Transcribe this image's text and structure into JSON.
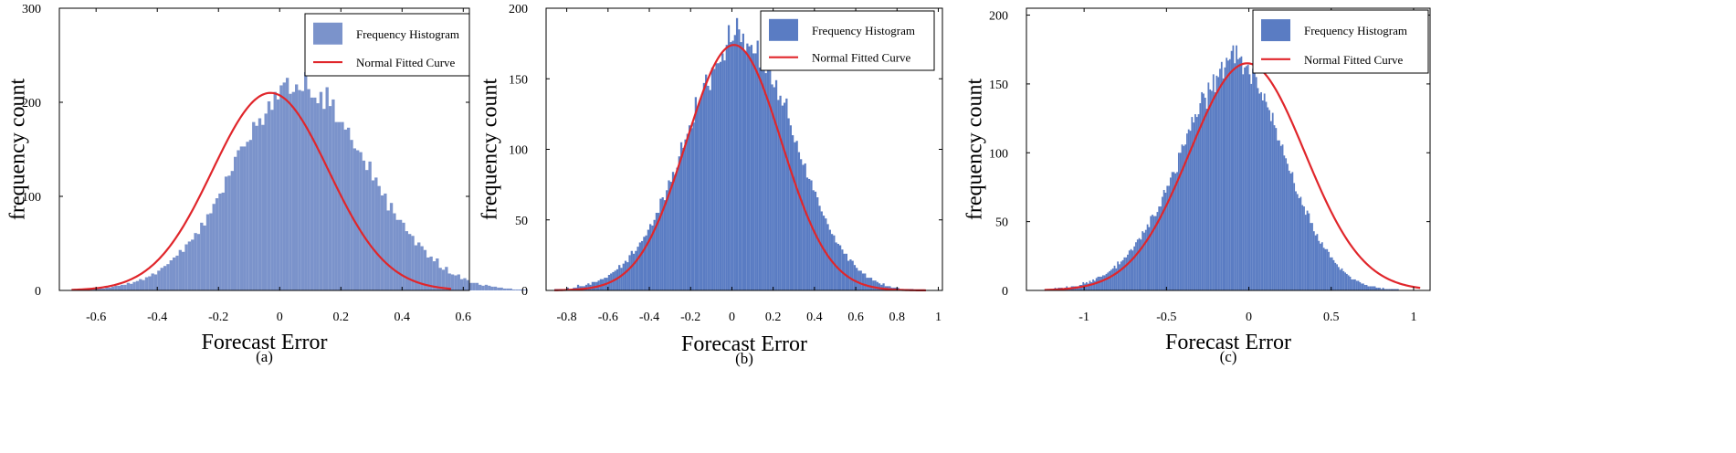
{
  "figure": {
    "legend_labels": {
      "histogram": "Frequency Histogram",
      "curve": "Normal Fitted Curve"
    },
    "colors": {
      "bar": "#5a7cc3",
      "curve": "#e0262b",
      "frame": "#000000"
    }
  },
  "chart_data": [
    {
      "id": "a",
      "type": "bar",
      "subtype": "histogram with normal fitted curve",
      "caption": "(a)",
      "xlabel": "Forecast Error",
      "ylabel": "frequency count",
      "xlim": [
        -0.72,
        0.62
      ],
      "ylim": [
        0,
        300
      ],
      "xticks": [
        -0.6,
        -0.4,
        -0.2,
        0,
        0.2,
        0.4,
        0.6
      ],
      "xtick_labels": [
        "-0.6",
        "-0.4",
        "-0.2",
        "0",
        "0.2",
        "0.4",
        "0.6"
      ],
      "yticks": [
        0,
        100,
        200,
        300
      ],
      "ytick_labels": [
        "0",
        "100",
        "200",
        "300"
      ],
      "legend": {
        "position": "top-right",
        "entries": [
          "Frequency Histogram",
          "Normal Fitted Curve"
        ]
      },
      "grid": false,
      "bar_color": "#7b93cb",
      "bin_width": 0.01,
      "x_range": [
        -0.68,
        0.56
      ],
      "histogram_values": [
        1,
        0,
        1,
        0,
        2,
        1,
        1,
        2,
        2,
        3,
        2,
        4,
        3,
        4,
        5,
        5,
        6,
        6,
        8,
        7,
        9,
        10,
        12,
        11,
        14,
        15,
        18,
        17,
        21,
        24,
        26,
        28,
        32,
        35,
        37,
        43,
        41,
        49,
        52,
        54,
        61,
        60,
        72,
        69,
        81,
        82,
        92,
        98,
        103,
        104,
        121,
        122,
        127,
        142,
        149,
        153,
        153,
        158,
        160,
        179,
        175,
        183,
        176,
        188,
        201,
        192,
        211,
        203,
        218,
        221,
        226,
        209,
        211,
        219,
        213,
        212,
        232,
        214,
        205,
        205,
        199,
        211,
        193,
        216,
        196,
        203,
        179,
        179,
        179,
        171,
        173,
        160,
        151,
        149,
        147,
        138,
        128,
        137,
        117,
        120,
        111,
        101,
        103,
        85,
        93,
        82,
        75,
        75,
        72,
        63,
        60,
        58,
        48,
        51,
        47,
        43,
        35,
        36,
        31,
        34,
        24,
        22,
        25,
        18,
        17,
        16,
        17,
        12,
        13,
        11,
        8,
        8,
        8,
        6,
        5,
        6,
        5,
        4,
        4,
        3,
        3,
        2,
        2,
        2,
        1,
        1,
        1,
        1,
        1,
        0,
        0
      ],
      "fit": {
        "mean": -0.03,
        "std": 0.19,
        "peak": 210
      }
    },
    {
      "id": "b",
      "type": "bar",
      "subtype": "histogram with normal fitted curve",
      "caption": "(b)",
      "xlabel": "Forecast Error",
      "ylabel": "frequency count",
      "xlim": [
        -0.9,
        1.02
      ],
      "ylim": [
        0,
        200
      ],
      "xticks": [
        -0.8,
        -0.6,
        -0.4,
        -0.2,
        0,
        0.2,
        0.4,
        0.6,
        0.8,
        1
      ],
      "xtick_labels": [
        "-0.8",
        "-0.6",
        "-0.4",
        "-0.2",
        "0",
        "0.2",
        "0.4",
        "0.6",
        "0.8",
        "1"
      ],
      "yticks": [
        0,
        50,
        100,
        150,
        200
      ],
      "ytick_labels": [
        "0",
        "50",
        "100",
        "150",
        "200"
      ],
      "legend": {
        "position": "top-right",
        "entries": [
          "Frequency Histogram",
          "Normal Fitted Curve"
        ]
      },
      "grid": false,
      "bar_color": "#5a7cc3",
      "bin_width": 0.01,
      "x_range": [
        -0.86,
        0.94
      ],
      "histogram_values": [
        1,
        1,
        1,
        1,
        0,
        1,
        2,
        1,
        1,
        2,
        2,
        4,
        3,
        3,
        3,
        4,
        5,
        4,
        6,
        6,
        6,
        7,
        8,
        8,
        9,
        9,
        11,
        12,
        13,
        14,
        15,
        18,
        16,
        19,
        21,
        20,
        25,
        28,
        26,
        28,
        31,
        34,
        35,
        38,
        39,
        43,
        47,
        46,
        50,
        55,
        55,
        65,
        66,
        64,
        71,
        78,
        77,
        84,
        82,
        87,
        95,
        105,
        101,
        107,
        111,
        117,
        115,
        119,
        137,
        130,
        134,
        139,
        147,
        153,
        145,
        142,
        158,
        157,
        161,
        161,
        162,
        168,
        163,
        174,
        188,
        176,
        177,
        181,
        193,
        185,
        176,
        182,
        169,
        175,
        173,
        174,
        168,
        168,
        177,
        158,
        170,
        169,
        154,
        164,
        158,
        146,
        144,
        149,
        135,
        138,
        131,
        133,
        136,
        122,
        117,
        110,
        105,
        106,
        98,
        93,
        89,
        90,
        80,
        79,
        78,
        71,
        70,
        66,
        60,
        56,
        53,
        51,
        47,
        43,
        40,
        39,
        34,
        33,
        32,
        29,
        26,
        26,
        21,
        22,
        21,
        18,
        16,
        14,
        14,
        12,
        12,
        9,
        9,
        9,
        7,
        7,
        6,
        5,
        4,
        5,
        3,
        3,
        3,
        2,
        2,
        2,
        2,
        1,
        1,
        1,
        1,
        1,
        1,
        1,
        0,
        0,
        0,
        0,
        0,
        0
      ],
      "fit": {
        "mean": 0.01,
        "std": 0.23,
        "peak": 174
      }
    },
    {
      "id": "c",
      "type": "bar",
      "subtype": "histogram with normal fitted curve",
      "caption": "(c)",
      "xlabel": "Forecast Error",
      "ylabel": "frequency count",
      "xlim": [
        -1.35,
        1.1
      ],
      "ylim": [
        0,
        205
      ],
      "xticks": [
        -1,
        -0.5,
        0,
        0.5,
        1
      ],
      "xtick_labels": [
        "-1",
        "-0.5",
        "0",
        "0.5",
        "1"
      ],
      "yticks": [
        0,
        50,
        100,
        150,
        200
      ],
      "ytick_labels": [
        "0",
        "50",
        "100",
        "150",
        "200"
      ],
      "legend": {
        "position": "top-right",
        "entries": [
          "Frequency Histogram",
          "Normal Fitted Curve"
        ]
      },
      "grid": false,
      "bar_color": "#5a7cc3",
      "bin_width": 0.01,
      "x_range": [
        -1.24,
        1.04
      ],
      "histogram_values": [
        1,
        1,
        1,
        1,
        1,
        1,
        2,
        1,
        2,
        2,
        2,
        1,
        2,
        3,
        2,
        2,
        3,
        3,
        3,
        3,
        3,
        4,
        4,
        6,
        5,
        6,
        5,
        7,
        6,
        8,
        7,
        9,
        10,
        10,
        10,
        11,
        11,
        12,
        13,
        14,
        15,
        16,
        18,
        16,
        21,
        19,
        21,
        22,
        24,
        24,
        26,
        29,
        30,
        29,
        32,
        35,
        37,
        38,
        37,
        43,
        42,
        44,
        48,
        46,
        54,
        55,
        54,
        54,
        57,
        61,
        61,
        68,
        73,
        71,
        76,
        76,
        82,
        86,
        86,
        85,
        86,
        100,
        100,
        106,
        105,
        106,
        114,
        117,
        116,
        126,
        122,
        128,
        126,
        128,
        136,
        144,
        143,
        140,
        132,
        151,
        146,
        145,
        157,
        144,
        156,
        155,
        161,
        166,
        154,
        162,
        169,
        167,
        168,
        174,
        178,
        165,
        178,
        168,
        169,
        170,
        157,
        162,
        163,
        164,
        157,
        150,
        161,
        160,
        155,
        147,
        143,
        144,
        138,
        143,
        137,
        133,
        131,
        123,
        129,
        120,
        118,
        109,
        109,
        105,
        106,
        98,
        96,
        92,
        87,
        85,
        86,
        78,
        72,
        70,
        67,
        68,
        62,
        61,
        55,
        58,
        56,
        49,
        49,
        43,
        40,
        41,
        36,
        34,
        35,
        31,
        30,
        30,
        28,
        24,
        24,
        22,
        20,
        19,
        17,
        15,
        16,
        14,
        13,
        12,
        11,
        10,
        8,
        8,
        8,
        7,
        7,
        6,
        5,
        5,
        4,
        4,
        3,
        3,
        3,
        3,
        3,
        2,
        2,
        2,
        1,
        2,
        1,
        1,
        1,
        1,
        1,
        1,
        1,
        1,
        1,
        0,
        0,
        0,
        0,
        0
      ],
      "fit": {
        "mean": -0.01,
        "std": 0.35,
        "peak": 165
      }
    }
  ]
}
